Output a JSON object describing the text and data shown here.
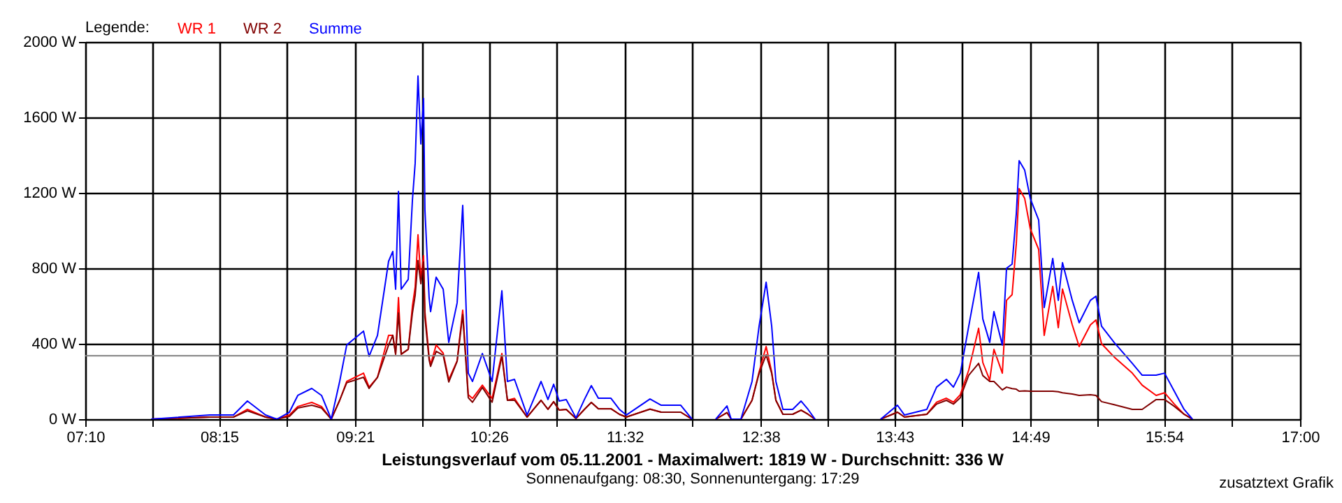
{
  "chart_data": {
    "type": "line",
    "title": "Leistungsverlauf vom 05.11.2001 - Maximalwert: 1819 W - Durchschnitt: 336 W",
    "subtitle": "Sonnenaufgang: 08:30, Sonnenuntergang: 17:29",
    "legend_title": "Legende:",
    "annotations": [
      "zusatztext Grafik"
    ],
    "x": [
      7.699,
      8.174,
      8.366,
      8.479,
      8.626,
      8.717,
      8.819,
      8.887,
      9.0,
      9.079,
      9.158,
      9.226,
      9.283,
      9.419,
      9.464,
      9.532,
      9.622,
      9.656,
      9.679,
      9.702,
      9.724,
      9.781,
      9.815,
      9.837,
      9.86,
      9.883,
      9.905,
      9.916,
      9.95,
      9.962,
      10.007,
      10.064,
      10.109,
      10.177,
      10.222,
      10.267,
      10.301,
      10.381,
      10.46,
      10.539,
      10.584,
      10.641,
      10.743,
      10.856,
      10.912,
      10.958,
      11.003,
      11.06,
      11.139,
      11.207,
      11.263,
      11.32,
      11.422,
      11.49,
      11.546,
      11.738,
      11.829,
      11.908,
      11.987,
      12.078,
      12.17,
      12.27,
      12.361,
      12.395,
      12.474,
      12.564,
      12.621,
      12.678,
      12.723,
      12.757,
      12.814,
      12.893,
      12.961,
      13.017,
      13.074,
      13.34,
      13.605,
      13.741,
      13.798,
      13.979,
      14.058,
      14.137,
      14.194,
      14.25,
      14.318,
      14.398,
      14.432,
      14.488,
      14.522,
      14.59,
      14.624,
      14.669,
      14.703,
      14.726,
      14.771,
      14.816,
      14.884,
      14.929,
      14.998,
      15.043,
      15.077,
      15.156,
      15.212,
      15.303,
      15.348,
      15.393,
      15.495,
      15.642,
      15.722,
      15.835,
      15.903,
      15.982,
      16.061,
      16.129
    ],
    "series": [
      {
        "name": "WR 1",
        "color": "#ff0000",
        "values": [
          0,
          11,
          11,
          52,
          11,
          0,
          22,
          67,
          89,
          67,
          0,
          100,
          200,
          244,
          170,
          222,
          444,
          444,
          344,
          644,
          344,
          370,
          600,
          700,
          978,
          741,
          867,
          570,
          330,
          290,
          393,
          350,
          210,
          310,
          578,
          130,
          110,
          180,
          110,
          348,
          100,
          110,
          11,
          100,
          52,
          93,
          48,
          52,
          4,
          52,
          89,
          56,
          56,
          26,
          11,
          54,
          37,
          37,
          37,
          0,
          null,
          0,
          35,
          0,
          0,
          100,
          250,
          385,
          250,
          100,
          26,
          26,
          48,
          26,
          0,
          null,
          0,
          37,
          11,
          26,
          90,
          111,
          90,
          130,
          260,
          482,
          300,
          207,
          370,
          244,
          630,
          660,
          930,
          1222,
          1170,
          1010,
          900,
          444,
          704,
          485,
          690,
          500,
          385,
          500,
          526,
          400,
          330,
          244,
          180,
          126,
          140,
          80,
          26,
          0
        ]
      },
      {
        "name": "WR 2",
        "color": "#800000",
        "values": [
          0,
          11,
          11,
          44,
          11,
          0,
          15,
          59,
          74,
          59,
          0,
          100,
          193,
          222,
          163,
          222,
          393,
          445,
          345,
          563,
          345,
          371,
          563,
          656,
          841,
          718,
          833,
          541,
          314,
          280,
          360,
          339,
          197,
          307,
          555,
          114,
          90,
          168,
          90,
          333,
          100,
          101,
          11,
          100,
          52,
          92,
          48,
          52,
          3,
          52,
          89,
          55,
          55,
          26,
          11,
          53,
          37,
          37,
          37,
          0,
          null,
          0,
          35,
          0,
          0,
          100,
          243,
          341,
          243,
          100,
          26,
          26,
          48,
          26,
          0,
          null,
          0,
          37,
          11,
          26,
          80,
          100,
          80,
          114,
          233,
          296,
          231,
          200,
          200,
          155,
          170,
          162,
          159,
          148,
          150,
          148,
          148,
          148,
          148,
          145,
          140,
          133,
          126,
          130,
          126,
          93,
          77,
          52,
          52,
          104,
          104,
          68,
          26,
          0
        ]
      },
      {
        "name": "Summe",
        "color": "#0000ff",
        "values": [
          0,
          22,
          22,
          96,
          22,
          0,
          37,
          126,
          163,
          126,
          0,
          200,
          393,
          467,
          333,
          444,
          837,
          889,
          689,
          1207,
          689,
          741,
          1163,
          1356,
          1819,
          1459,
          1700,
          1111,
          644,
          570,
          753,
          689,
          407,
          617,
          1133,
          244,
          200,
          348,
          200,
          681,
          200,
          211,
          22,
          200,
          104,
          185,
          96,
          104,
          7,
          104,
          178,
          111,
          111,
          52,
          22,
          107,
          74,
          74,
          74,
          0,
          null,
          0,
          70,
          0,
          0,
          200,
          493,
          726,
          493,
          200,
          52,
          52,
          96,
          52,
          0,
          null,
          0,
          74,
          22,
          52,
          170,
          211,
          170,
          244,
          493,
          778,
          531,
          407,
          570,
          393,
          800,
          822,
          1089,
          1370,
          1320,
          1170,
          1056,
          592,
          852,
          630,
          830,
          630,
          511,
          630,
          652,
          493,
          407,
          296,
          233,
          233,
          244,
          148,
          52,
          0
        ]
      }
    ],
    "xlim": [
      7.1667,
      17
    ],
    "xticks": [
      {
        "value": 7.1667,
        "label": "07:10"
      },
      {
        "value": 7.7083,
        "label": null
      },
      {
        "value": 8.25,
        "label": "08:15"
      },
      {
        "value": 8.8,
        "label": null
      },
      {
        "value": 9.35,
        "label": "09:21"
      },
      {
        "value": 9.8917,
        "label": null
      },
      {
        "value": 10.4333,
        "label": "10:26"
      },
      {
        "value": 10.9833,
        "label": null
      },
      {
        "value": 11.5333,
        "label": "11:32"
      },
      {
        "value": 12.0833,
        "label": null
      },
      {
        "value": 12.6333,
        "label": "12:38"
      },
      {
        "value": 13.175,
        "label": null
      },
      {
        "value": 13.7167,
        "label": "13:43"
      },
      {
        "value": 14.2667,
        "label": null
      },
      {
        "value": 14.8167,
        "label": "14:49"
      },
      {
        "value": 15.3583,
        "label": null
      },
      {
        "value": 15.9,
        "label": "15:54"
      },
      {
        "value": 16.45,
        "label": null
      },
      {
        "value": 17,
        "label": "17:00"
      }
    ],
    "ylim": [
      0,
      2000
    ],
    "yticks": [
      {
        "value": 0,
        "label": "0 W"
      },
      {
        "value": 400,
        "label": "400 W"
      },
      {
        "value": 800,
        "label": "800 W"
      },
      {
        "value": 1200,
        "label": "1200 W"
      },
      {
        "value": 1600,
        "label": "1600 W"
      },
      {
        "value": 2000,
        "label": "2000 W"
      }
    ],
    "ref_lines": [
      {
        "axis": "y",
        "value": 336,
        "color": "#808080"
      }
    ],
    "grid": true,
    "legend": "top left"
  }
}
